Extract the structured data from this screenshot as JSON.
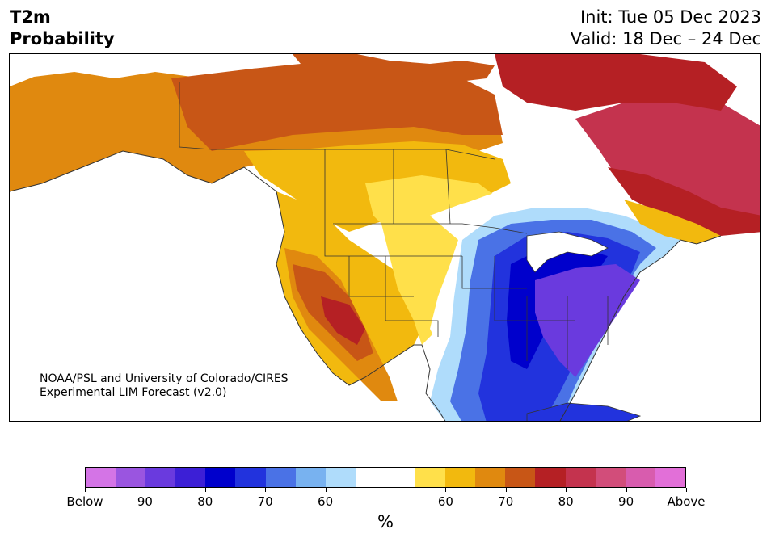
{
  "title": {
    "variable": "T2m",
    "product": "Probability",
    "init": "Init: Tue 05 Dec 2023",
    "valid": "Valid: 18 Dec – 24 Dec"
  },
  "credit": {
    "line1": "NOAA/PSL and University of Colorado/CIRES",
    "line2": "Experimental LIM Forecast (v2.0)"
  },
  "colorbar": {
    "label": "%",
    "colors": [
      "#d474e6",
      "#9a55e0",
      "#6a3ade",
      "#3c1fd6",
      "#0000cc",
      "#2233dd",
      "#4a72e6",
      "#78b2f0",
      "#afdcfb",
      "#ffffff",
      "#ffffff",
      "#ffe04a",
      "#f2b90e",
      "#e0890f",
      "#c85616",
      "#b52024",
      "#c4334e",
      "#d24d7a",
      "#d85cae",
      "#e26fd8"
    ],
    "ticks": [
      "Below",
      "90",
      "80",
      "70",
      "60",
      "60",
      "70",
      "80",
      "90",
      "Above"
    ]
  },
  "legend_colors": {
    "below_strong": "#0000cc",
    "below_mid": "#6a3ade",
    "below_weak": "#afdcfb",
    "above_weak": "#ffe04a",
    "above_mid": "#f2b90e",
    "above_strong": "#c85616",
    "above_very": "#b52024"
  }
}
